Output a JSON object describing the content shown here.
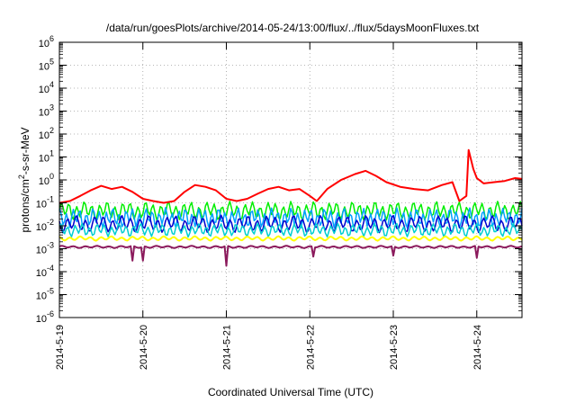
{
  "chart_data": {
    "type": "line",
    "title": "/data/run/goesPlots/archive/2014-05-24/13:00/flux/../flux/5daysMoonFluxes.txt",
    "xlabel": "Coordinated Universal Time (UTC)",
    "ylabel_parts": [
      "protons/cm",
      "2",
      "-s-sr-MeV"
    ],
    "x_ticks": [
      "2014-5-19",
      "2014-5-20",
      "2014-5-21",
      "2014-5-22",
      "2014-5-23",
      "2014-5-24"
    ],
    "x_range": [
      "2014-05-19 00:00",
      "2014-05-24 13:00"
    ],
    "y_scale": "log",
    "y_ticks": [
      {
        "base": "10",
        "exp": "-6"
      },
      {
        "base": "10",
        "exp": "-5"
      },
      {
        "base": "10",
        "exp": "-4"
      },
      {
        "base": "10",
        "exp": "-3"
      },
      {
        "base": "10",
        "exp": "-2"
      },
      {
        "base": "10",
        "exp": "-1"
      },
      {
        "base": "10",
        "exp": "0"
      },
      {
        "base": "10",
        "exp": "1"
      },
      {
        "base": "10",
        "exp": "2"
      },
      {
        "base": "10",
        "exp": "3"
      },
      {
        "base": "10",
        "exp": "4"
      },
      {
        "base": "10",
        "exp": "5"
      },
      {
        "base": "10",
        "exp": "6"
      }
    ],
    "ylim": [
      1e-06,
      1000000.0
    ],
    "grid": true,
    "series": [
      {
        "color": "#ff0000",
        "width": 2,
        "points": [
          [
            "2014-05-19 00:00",
            0.1
          ],
          [
            "2014-05-19 03:00",
            0.12
          ],
          [
            "2014-05-19 06:00",
            0.2
          ],
          [
            "2014-05-19 09:00",
            0.35
          ],
          [
            "2014-05-19 12:00",
            0.55
          ],
          [
            "2014-05-19 15:00",
            0.4
          ],
          [
            "2014-05-19 18:00",
            0.5
          ],
          [
            "2014-05-19 21:00",
            0.3
          ],
          [
            "2014-05-20 00:00",
            0.15
          ],
          [
            "2014-05-20 03:00",
            0.12
          ],
          [
            "2014-05-20 06:00",
            0.1
          ],
          [
            "2014-05-20 09:00",
            0.12
          ],
          [
            "2014-05-20 12:00",
            0.3
          ],
          [
            "2014-05-20 15:00",
            0.6
          ],
          [
            "2014-05-20 18:00",
            0.5
          ],
          [
            "2014-05-20 21:00",
            0.35
          ],
          [
            "2014-05-21 00:00",
            0.15
          ],
          [
            "2014-05-21 03:00",
            0.12
          ],
          [
            "2014-05-21 06:00",
            0.15
          ],
          [
            "2014-05-21 09:00",
            0.25
          ],
          [
            "2014-05-21 12:00",
            0.4
          ],
          [
            "2014-05-21 15:00",
            0.5
          ],
          [
            "2014-05-21 18:00",
            0.35
          ],
          [
            "2014-05-21 21:00",
            0.4
          ],
          [
            "2014-05-22 00:00",
            0.2
          ],
          [
            "2014-05-22 02:00",
            0.12
          ],
          [
            "2014-05-22 05:00",
            0.4
          ],
          [
            "2014-05-22 09:00",
            1.0
          ],
          [
            "2014-05-22 13:00",
            1.8
          ],
          [
            "2014-05-22 16:00",
            2.5
          ],
          [
            "2014-05-22 19:00",
            1.5
          ],
          [
            "2014-05-22 22:00",
            0.8
          ],
          [
            "2014-05-23 02:00",
            0.5
          ],
          [
            "2014-05-23 06:00",
            0.4
          ],
          [
            "2014-05-23 10:00",
            0.35
          ],
          [
            "2014-05-23 14:00",
            0.6
          ],
          [
            "2014-05-23 17:00",
            0.8
          ],
          [
            "2014-05-23 19:00",
            0.12
          ],
          [
            "2014-05-23 21:00",
            0.2
          ],
          [
            "2014-05-23 21:40",
            20
          ],
          [
            "2014-05-23 23:00",
            3.0
          ],
          [
            "2014-05-24 00:00",
            1.2
          ],
          [
            "2014-05-24 02:00",
            0.7
          ],
          [
            "2014-05-24 05:00",
            0.8
          ],
          [
            "2014-05-24 08:00",
            0.9
          ],
          [
            "2014-05-24 11:00",
            1.2
          ],
          [
            "2014-05-24 13:00",
            1.1
          ]
        ]
      },
      {
        "color": "#00ee00",
        "width": 1.5,
        "center": 0.045,
        "amp": 2.6,
        "period_h": 2.2,
        "phase": 0.0
      },
      {
        "color": "#00a0ff",
        "width": 1.5,
        "center": 0.022,
        "amp": 2.8,
        "period_h": 1.9,
        "phase": 1.1
      },
      {
        "color": "#0000cd",
        "width": 1.5,
        "center": 0.012,
        "amp": 2.4,
        "period_h": 2.6,
        "phase": 2.3
      },
      {
        "color": "#00ced1",
        "width": 1.5,
        "center": 0.0065,
        "amp": 2.0,
        "period_h": 2.1,
        "phase": 0.7
      },
      {
        "color": "#ffff00",
        "width": 2,
        "center": 0.0028,
        "amp": 1.25,
        "period_h": 3.0,
        "phase": 1.7
      },
      {
        "color": "#8b1a5c",
        "width": 2,
        "center": 0.0012,
        "amp": 1.12,
        "period_h": 3.4,
        "phase": 0.4,
        "dips": [
          [
            "2014-05-19 21:00",
            0.0003
          ],
          [
            "2014-05-20 00:00",
            0.0003
          ],
          [
            "2014-05-21 00:00",
            0.00018
          ],
          [
            "2014-05-22 01:00",
            0.00045
          ],
          [
            "2014-05-23 00:00",
            0.0005
          ],
          [
            "2014-05-24 00:00",
            0.0004
          ]
        ]
      }
    ]
  }
}
